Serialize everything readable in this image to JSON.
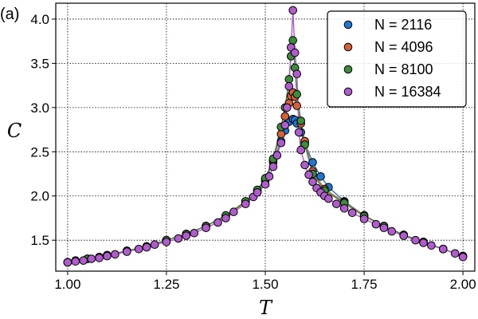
{
  "panel_label": "(a)",
  "colors": {
    "N = 2116": "#1f77d4",
    "N = 4096": "#d4603a",
    "N = 8100": "#3c8c3a",
    "N = 16384": "#b05ccc",
    "marker_edge": "#000000",
    "grid": "#000000"
  },
  "chart_data": {
    "type": "scatter",
    "xlabel": "T",
    "ylabel": "C",
    "xlim": [
      0.97,
      2.03
    ],
    "ylim": [
      1.15,
      4.18
    ],
    "xticks": [
      1.0,
      1.25,
      1.5,
      1.75,
      2.0
    ],
    "xtick_labels": [
      "1.00",
      "1.25",
      "1.50",
      "1.75",
      "2.00"
    ],
    "yticks": [
      1.5,
      2.0,
      2.5,
      3.0,
      3.5,
      4.0
    ],
    "ytick_labels": [
      "1.5",
      "2.0",
      "2.5",
      "3.0",
      "3.5",
      "4.0"
    ],
    "grid": true,
    "grid_style": "dotted",
    "legend_position": "top-right",
    "series": [
      {
        "name": "N = 2116",
        "x": [
          1.0,
          1.02,
          1.05,
          1.08,
          1.1,
          1.15,
          1.2,
          1.25,
          1.3,
          1.35,
          1.4,
          1.45,
          1.48,
          1.5,
          1.52,
          1.54,
          1.55,
          1.56,
          1.57,
          1.575,
          1.58,
          1.59,
          1.6,
          1.62,
          1.64,
          1.66,
          1.7,
          1.75,
          1.8,
          1.85,
          1.9,
          1.95,
          2.0
        ],
        "y": [
          1.25,
          1.27,
          1.29,
          1.31,
          1.33,
          1.38,
          1.43,
          1.5,
          1.57,
          1.66,
          1.77,
          1.93,
          2.05,
          2.17,
          2.38,
          2.62,
          2.74,
          2.84,
          2.87,
          2.86,
          2.82,
          2.72,
          2.6,
          2.38,
          2.22,
          2.1,
          1.94,
          1.78,
          1.66,
          1.56,
          1.48,
          1.4,
          1.32
        ]
      },
      {
        "name": "N = 4096",
        "x": [
          1.0,
          1.05,
          1.1,
          1.15,
          1.2,
          1.25,
          1.3,
          1.35,
          1.4,
          1.45,
          1.48,
          1.5,
          1.52,
          1.54,
          1.55,
          1.56,
          1.565,
          1.57,
          1.575,
          1.58,
          1.59,
          1.6,
          1.62,
          1.65,
          1.7,
          1.75,
          1.8,
          1.85,
          1.9,
          1.95,
          2.0
        ],
        "y": [
          1.25,
          1.29,
          1.33,
          1.38,
          1.43,
          1.5,
          1.57,
          1.66,
          1.77,
          1.93,
          2.06,
          2.19,
          2.4,
          2.7,
          2.9,
          3.05,
          3.13,
          3.17,
          3.12,
          3.02,
          2.82,
          2.62,
          2.28,
          2.08,
          1.93,
          1.78,
          1.66,
          1.56,
          1.48,
          1.4,
          1.32
        ]
      },
      {
        "name": "N = 8100",
        "x": [
          1.0,
          1.05,
          1.1,
          1.15,
          1.2,
          1.25,
          1.3,
          1.35,
          1.4,
          1.45,
          1.48,
          1.5,
          1.52,
          1.54,
          1.55,
          1.56,
          1.565,
          1.57,
          1.575,
          1.58,
          1.59,
          1.6,
          1.62,
          1.65,
          1.7,
          1.75,
          1.8,
          1.85,
          1.9,
          1.95,
          2.0
        ],
        "y": [
          1.25,
          1.29,
          1.33,
          1.38,
          1.43,
          1.5,
          1.57,
          1.66,
          1.78,
          1.94,
          2.07,
          2.2,
          2.42,
          2.78,
          3.0,
          3.32,
          3.58,
          3.76,
          3.45,
          3.15,
          2.85,
          2.58,
          2.25,
          2.06,
          1.92,
          1.77,
          1.66,
          1.56,
          1.48,
          1.4,
          1.32
        ]
      },
      {
        "name": "N = 16384",
        "x": [
          1.0,
          1.02,
          1.04,
          1.06,
          1.08,
          1.1,
          1.12,
          1.15,
          1.18,
          1.2,
          1.22,
          1.25,
          1.28,
          1.3,
          1.32,
          1.35,
          1.38,
          1.4,
          1.42,
          1.45,
          1.47,
          1.48,
          1.5,
          1.51,
          1.52,
          1.53,
          1.54,
          1.55,
          1.555,
          1.56,
          1.565,
          1.57,
          1.575,
          1.58,
          1.585,
          1.59,
          1.6,
          1.61,
          1.62,
          1.63,
          1.64,
          1.65,
          1.66,
          1.68,
          1.7,
          1.72,
          1.75,
          1.78,
          1.8,
          1.82,
          1.85,
          1.88,
          1.9,
          1.92,
          1.95,
          1.98,
          2.0
        ],
        "y": [
          1.25,
          1.26,
          1.27,
          1.29,
          1.3,
          1.32,
          1.34,
          1.37,
          1.4,
          1.42,
          1.45,
          1.48,
          1.52,
          1.55,
          1.58,
          1.64,
          1.7,
          1.75,
          1.82,
          1.91,
          1.99,
          2.04,
          2.13,
          2.22,
          2.33,
          2.46,
          2.6,
          2.8,
          3.0,
          3.24,
          3.68,
          4.1,
          3.62,
          3.38,
          2.72,
          2.52,
          2.35,
          2.24,
          2.16,
          2.09,
          2.04,
          2.0,
          1.97,
          1.91,
          1.86,
          1.81,
          1.74,
          1.68,
          1.64,
          1.6,
          1.55,
          1.5,
          1.47,
          1.44,
          1.4,
          1.35,
          1.31
        ]
      }
    ]
  }
}
